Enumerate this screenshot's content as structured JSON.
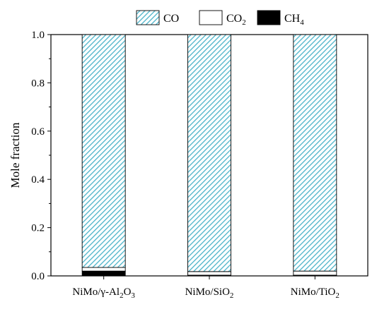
{
  "chart_data": {
    "type": "bar",
    "stacked": true,
    "categories": [
      {
        "base": "NiMo/γ-Al",
        "parts": [
          [
            "NiMo/γ-Al",
            ""
          ],
          [
            "2",
            "sub"
          ],
          [
            "O",
            ""
          ],
          [
            "3",
            "sub"
          ]
        ]
      },
      {
        "base": "NiMo/SiO",
        "parts": [
          [
            "NiMo/SiO",
            ""
          ],
          [
            "2",
            "sub"
          ]
        ]
      },
      {
        "base": "NiMo/TiO",
        "parts": [
          [
            "NiMo/TiO",
            ""
          ],
          [
            "2",
            "sub"
          ]
        ]
      }
    ],
    "series": [
      {
        "name": "CH4",
        "legend_parts": [
          [
            "CH",
            ""
          ],
          [
            "4",
            "sub"
          ]
        ],
        "color": "#000000",
        "pattern": "solid",
        "values": [
          0.02,
          0.003,
          0.003
        ]
      },
      {
        "name": "CO2",
        "legend_parts": [
          [
            "CO",
            ""
          ],
          [
            "2",
            "sub"
          ]
        ],
        "color": "#ffffff",
        "pattern": "open",
        "values": [
          0.015,
          0.015,
          0.017
        ]
      },
      {
        "name": "CO",
        "legend_parts": [
          [
            "CO",
            ""
          ]
        ],
        "color": "#4ab3c9",
        "pattern": "hatch",
        "values": [
          0.965,
          0.982,
          0.98
        ]
      }
    ],
    "ylabel": "Mole fraction",
    "xlabel": "",
    "ylim": [
      0,
      1.0
    ],
    "yticks": [
      0.0,
      0.2,
      0.4,
      0.6,
      0.8,
      1.0
    ],
    "yticks_labels": [
      "0.0",
      "0.2",
      "0.4",
      "0.6",
      "0.8",
      "1.0"
    ],
    "legend_position": "top",
    "grid": false
  }
}
